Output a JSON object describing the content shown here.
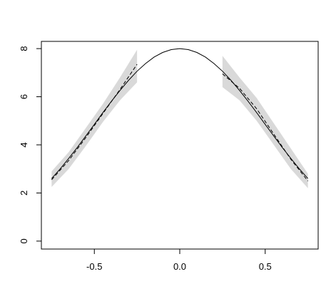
{
  "chart_data": {
    "type": "line",
    "xlim": [
      -0.81,
      0.81
    ],
    "ylim": [
      -0.33,
      8.3
    ],
    "xticks": [
      -0.5,
      {
        "value": 0,
        "label": "0.0"
      },
      0.5
    ],
    "yticks": [
      0,
      2,
      4,
      6,
      8
    ],
    "bands": [
      {
        "color": "#d9d9d9",
        "x": [
          -0.75,
          -0.65,
          -0.55,
          -0.45,
          -0.35,
          -0.25
        ],
        "lower": [
          2.25,
          3.0,
          3.95,
          4.95,
          5.85,
          6.6
        ],
        "upper": [
          2.9,
          3.7,
          4.7,
          5.7,
          6.8,
          7.95
        ]
      },
      {
        "color": "#d9d9d9",
        "x": [
          0.25,
          0.35,
          0.45,
          0.55,
          0.65,
          0.75
        ],
        "lower": [
          6.4,
          5.85,
          5.0,
          4.0,
          3.0,
          2.2
        ],
        "upper": [
          7.7,
          6.8,
          5.95,
          4.9,
          3.85,
          2.8
        ]
      }
    ],
    "series": [
      {
        "color": "#000000",
        "dashed": false,
        "x": [
          -0.75,
          -0.7,
          -0.65,
          -0.6,
          -0.55,
          -0.5,
          -0.45,
          -0.4,
          -0.35,
          -0.3,
          -0.25,
          -0.2,
          -0.15,
          -0.1,
          -0.05,
          0,
          0.05,
          0.1,
          0.15,
          0.2,
          0.25,
          0.3,
          0.35,
          0.4,
          0.45,
          0.5,
          0.55,
          0.6,
          0.65,
          0.7,
          0.75
        ],
        "values": [
          2.6,
          3.0,
          3.44,
          3.89,
          4.37,
          4.85,
          5.34,
          5.81,
          6.26,
          6.68,
          7.06,
          7.38,
          7.65,
          7.84,
          7.96,
          8,
          7.96,
          7.84,
          7.65,
          7.38,
          7.06,
          6.68,
          6.26,
          5.81,
          5.34,
          4.85,
          4.37,
          3.89,
          3.44,
          3.0,
          2.6
        ]
      },
      {
        "color": "#000000",
        "dashed": true,
        "x": [
          -0.75,
          -0.65,
          -0.55,
          -0.45,
          -0.35,
          -0.25
        ],
        "values": [
          2.55,
          3.35,
          4.3,
          5.3,
          6.3,
          7.35
        ]
      },
      {
        "color": "#000000",
        "dashed": true,
        "x": [
          0.25,
          0.35,
          0.45,
          0.55,
          0.65,
          0.75
        ],
        "values": [
          6.95,
          6.35,
          5.5,
          4.45,
          3.4,
          2.5
        ]
      }
    ]
  }
}
